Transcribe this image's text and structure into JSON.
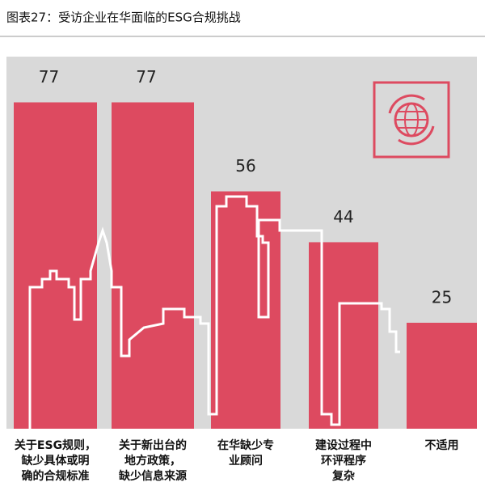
{
  "chart_data": {
    "type": "bar",
    "title": "图表27：受访企业在华面临的ESG合规挑战",
    "categories": [
      [
        "关于ESG规则，",
        "缺少具体或明",
        "确的合规标准"
      ],
      [
        "关于新出台的",
        "地方政策，",
        "缺少信息来源"
      ],
      [
        "在华缺少专",
        "业顾问"
      ],
      [
        "建设过程中",
        "环评程序",
        "复杂"
      ],
      [
        "不适用"
      ]
    ],
    "values": [
      77,
      77,
      56,
      44,
      25
    ],
    "color": "#dd4a60"
  }
}
